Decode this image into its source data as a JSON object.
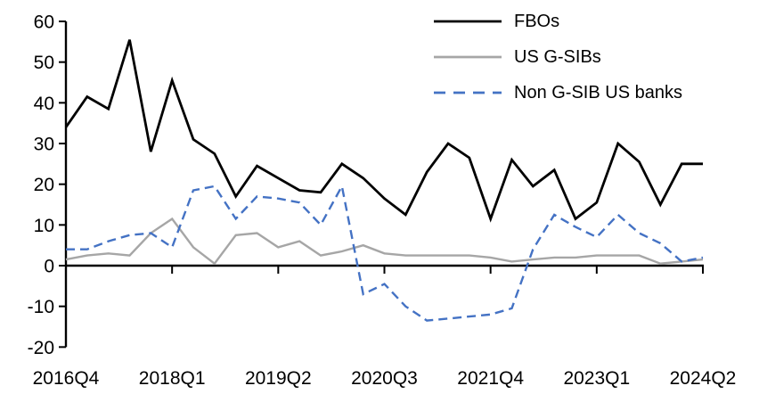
{
  "chart_data": {
    "type": "line",
    "title": "",
    "xlabel": "",
    "ylabel": "",
    "ylim": [
      -20,
      60
    ],
    "grid": "off",
    "legend_position": "top-right",
    "background": "#ffffff",
    "axis_color": "#000000",
    "y_ticks": [
      60,
      50,
      40,
      30,
      20,
      10,
      0,
      -10,
      -20
    ],
    "x_tick_labels": [
      "2016Q4",
      "2018Q1",
      "2019Q2",
      "2020Q3",
      "2021Q4",
      "2023Q1",
      "2024Q2"
    ],
    "x_tick_indices": [
      0,
      5,
      10,
      15,
      20,
      25,
      30
    ],
    "categories": [
      "2016Q4",
      "2017Q1",
      "2017Q2",
      "2017Q3",
      "2017Q4",
      "2018Q1",
      "2018Q2",
      "2018Q3",
      "2018Q4",
      "2019Q1",
      "2019Q2",
      "2019Q3",
      "2019Q4",
      "2020Q1",
      "2020Q2",
      "2020Q3",
      "2020Q4",
      "2021Q1",
      "2021Q2",
      "2021Q3",
      "2021Q4",
      "2022Q1",
      "2022Q2",
      "2022Q3",
      "2022Q4",
      "2023Q1",
      "2023Q2",
      "2023Q3",
      "2023Q4",
      "2024Q1",
      "2024Q2"
    ],
    "series": [
      {
        "id": "fbos",
        "name": "FBOs",
        "color": "#000000",
        "style": "solid",
        "values": [
          34,
          41.5,
          38.5,
          55.5,
          28,
          45.5,
          31,
          27.5,
          17,
          24.5,
          21.5,
          18.5,
          18,
          25,
          21.5,
          16.5,
          12.5,
          23,
          30,
          26.5,
          11.5,
          26,
          19.5,
          23.5,
          11.5,
          15.5,
          30,
          25.5,
          15,
          25,
          25
        ]
      },
      {
        "id": "us-gsibs",
        "name": "US G-SIBs",
        "color": "#a6a6a6",
        "style": "solid",
        "values": [
          1.5,
          2.5,
          3,
          2.5,
          8,
          11.5,
          4.5,
          0.5,
          7.5,
          8,
          4.5,
          6,
          2.5,
          3.5,
          5,
          3,
          2.5,
          2.5,
          2.5,
          2.5,
          2,
          1,
          1.5,
          2,
          2,
          2.5,
          2.5,
          2.5,
          0.5,
          1,
          1.5
        ]
      },
      {
        "id": "non-gsib-us-banks",
        "name": "Non G-SIB US banks",
        "color": "#4472c4",
        "style": "dashed",
        "values": [
          4,
          4,
          6,
          7.5,
          8,
          4.5,
          18.5,
          19.5,
          11.5,
          17,
          16.5,
          15.5,
          10,
          19.5,
          -7,
          -4.5,
          -10,
          -13.5,
          -13,
          -12.5,
          -12,
          -10.5,
          4,
          12.5,
          9.5,
          7,
          12.5,
          8,
          5.5,
          1,
          2
        ]
      }
    ]
  }
}
